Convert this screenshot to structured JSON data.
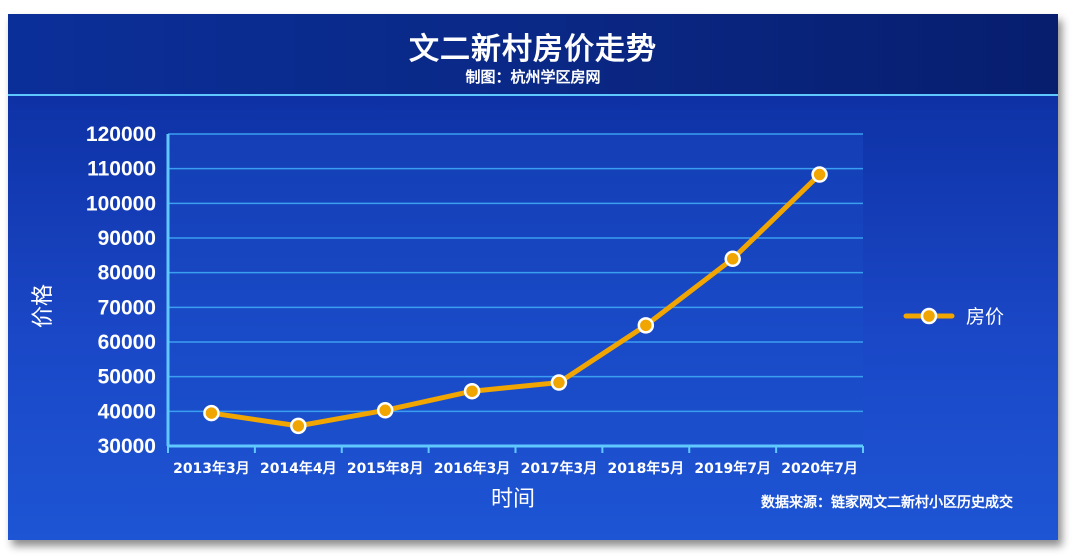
{
  "header": {
    "title": "文二新村房价走势",
    "subtitle": "制图：杭州学区房网"
  },
  "source_note": "数据来源：链家网文二新村小区历史成交",
  "colors": {
    "line": "#f0a500",
    "marker_fill": "#f0a500",
    "marker_stroke": "#ffffff",
    "axis": "#5fc8ff",
    "grid": "#3a9ff0",
    "text": "#ffffff"
  },
  "chart_data": {
    "type": "line",
    "title": "文二新村房价走势",
    "subtitle": "制图：杭州学区房网",
    "xlabel": "时间",
    "ylabel": "价格",
    "categories": [
      "2013年3月",
      "2014年4月",
      "2015年8月",
      "2016年3月",
      "2017年3月",
      "2018年5月",
      "2019年7月",
      "2020年7月"
    ],
    "series": [
      {
        "name": "房价",
        "values": [
          39500,
          35800,
          40300,
          45800,
          48300,
          64800,
          84000,
          108300
        ]
      }
    ],
    "ylim": [
      30000,
      120000
    ],
    "yticks": [
      30000,
      40000,
      50000,
      60000,
      70000,
      80000,
      90000,
      100000,
      110000,
      120000
    ],
    "grid": true,
    "legend": "right"
  }
}
